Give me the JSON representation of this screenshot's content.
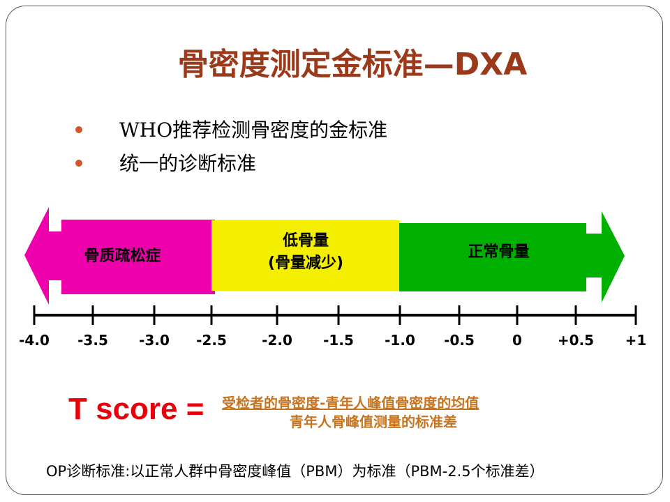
{
  "title": "骨密度测定金标准—DXA",
  "bullets": [
    "WHO推荐检测骨密度的金标准",
    "统一的诊断标准"
  ],
  "colors": {
    "title": "#9b3a1b",
    "bullet": "#d2562a",
    "osteoporosis": "#ee00aa",
    "osteopenia": "#f4ef00",
    "normal": "#00b000",
    "tscore": "#e8000b",
    "formula": "#c8741e"
  },
  "segments": {
    "osteoporosis": "骨质疏松症",
    "osteopenia_line1": "低骨量",
    "osteopenia_line2": "(骨量减少)",
    "normal": "正常骨量"
  },
  "scale": {
    "ticks": [
      "-4.0",
      "-3.5",
      "-3.0",
      "-2.5",
      "-2.0",
      "-1.5",
      "-1.0",
      "-0.5",
      "0",
      "+0.5",
      "+1"
    ],
    "tick_values": [
      -4.0,
      -3.5,
      -3.0,
      -2.5,
      -2.0,
      -1.5,
      -1.0,
      -0.5,
      0,
      0.5,
      1
    ],
    "ranges": {
      "osteoporosis": [
        -4.0,
        -2.5
      ],
      "osteopenia": [
        -2.5,
        -1.0
      ],
      "normal": [
        -1.0,
        1.0
      ]
    }
  },
  "formula": {
    "lhs": "T score =",
    "numerator": "受检者的骨密度-青年人峰值骨密度的均值",
    "denominator": "青年人骨峰值测量的标准差"
  },
  "footer": "OP诊断标准:以正常人群中骨密度峰值（PBM）为标准（PBM-2.5个标准差）"
}
